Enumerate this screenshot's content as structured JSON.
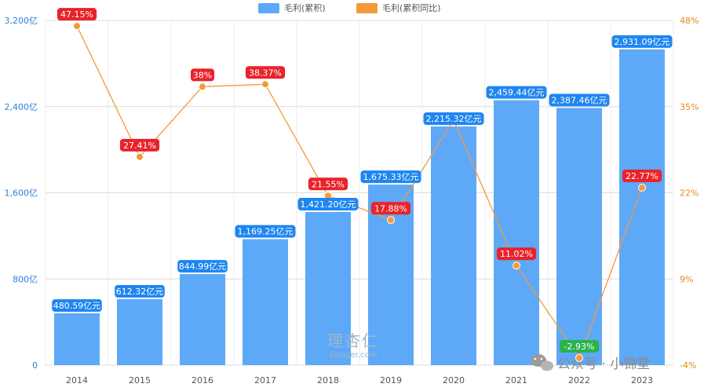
{
  "chart_data": {
    "type": "bar",
    "categories": [
      "2014",
      "2015",
      "2016",
      "2017",
      "2018",
      "2019",
      "2020",
      "2021",
      "2022",
      "2023"
    ],
    "series": [
      {
        "name": "毛利(累积)",
        "type": "bar",
        "axis": "left",
        "color": "#5ea8f8",
        "label_color": "#1f86f0",
        "values": [
          480.59,
          612.32,
          844.99,
          1169.25,
          1421.2,
          1675.33,
          2215.32,
          2459.44,
          2387.46,
          2931.09
        ],
        "labels": [
          "480.59亿元",
          "612.32亿元",
          "844.99亿元",
          "1,169.25亿元",
          "1,421.20亿元",
          "1,675.33亿元",
          "2,215.32亿元",
          "2,459.44亿元",
          "2,387.46亿元",
          "2,931.09亿元"
        ]
      },
      {
        "name": "毛利(累积同比)",
        "type": "line",
        "axis": "right",
        "color": "#f39a3a",
        "values": [
          47.15,
          27.41,
          38.0,
          38.37,
          21.55,
          17.88,
          33.0,
          11.02,
          -2.93,
          22.77
        ],
        "labels": [
          "47.15%",
          "27.41%",
          "38%",
          "38.37%",
          "21.55%",
          "17.88%",
          "",
          "11.02%",
          "-2.93%",
          "22.77%"
        ],
        "positive_label_color": "#e8232a",
        "negative_label_color": "#2bb24c"
      }
    ],
    "y_left": {
      "ticks": [
        0,
        800,
        1600,
        2400,
        3200
      ],
      "tick_labels": [
        "0",
        "800亿",
        "1,600亿",
        "2,400亿",
        "3,200亿"
      ],
      "range": [
        0,
        3200
      ]
    },
    "y_right": {
      "ticks": [
        -4,
        9,
        22,
        35,
        48
      ],
      "tick_labels": [
        "-4%",
        "9%",
        "22%",
        "35%",
        "48%"
      ],
      "range": [
        -4,
        48
      ]
    },
    "grid": true,
    "legend_position": "top-center"
  },
  "watermark": {
    "main": "理杏仁",
    "sub": "lixinger.com",
    "wechat": "公众号 · 小锦堂"
  }
}
